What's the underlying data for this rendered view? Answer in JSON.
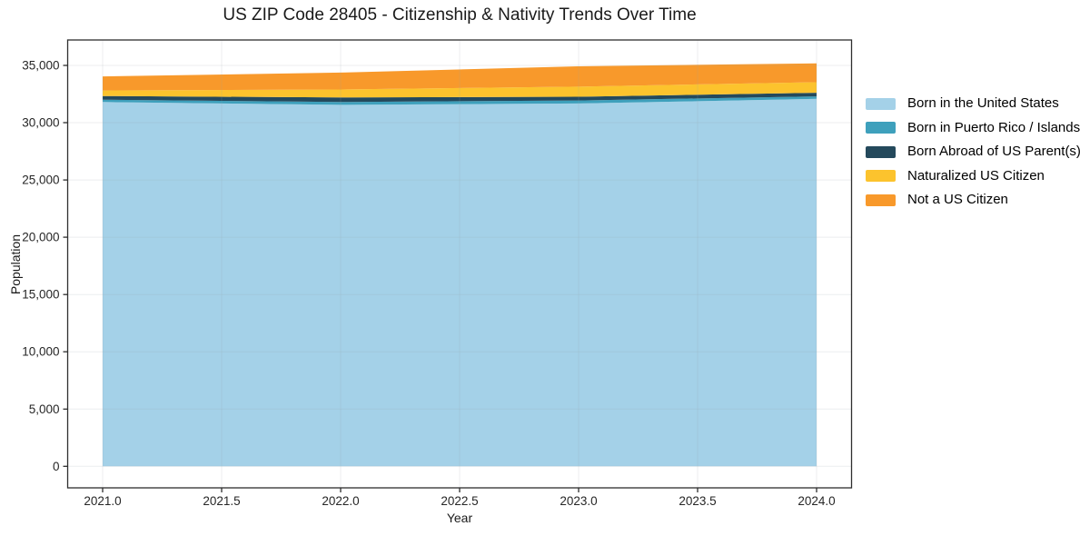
{
  "chart": {
    "title": "US ZIP Code 28405 - Citizenship & Nativity Trends Over Time",
    "xlabel": "Year",
    "ylabel": "Population"
  },
  "chart_data": {
    "type": "area",
    "stacked": true,
    "title": "US ZIP Code 28405 - Citizenship & Nativity Trends Over Time",
    "xlabel": "Year",
    "ylabel": "Population",
    "x": [
      2021,
      2022,
      2023,
      2024
    ],
    "series": [
      {
        "name": "Born in the United States",
        "color": "#a4d1e8",
        "values": [
          31800,
          31560,
          31680,
          32080
        ]
      },
      {
        "name": "Born in Puerto Rico / Islands",
        "color": "#3ea0bc",
        "values": [
          210,
          240,
          260,
          215
        ]
      },
      {
        "name": "Born Abroad of US Parent(s)",
        "color": "#24495c",
        "values": [
          320,
          400,
          320,
          320
        ]
      },
      {
        "name": "Naturalized US Citizen",
        "color": "#fcc32d",
        "values": [
          480,
          700,
          880,
          920
        ]
      },
      {
        "name": "Not a US Citizen",
        "color": "#f8992b",
        "values": [
          1230,
          1470,
          1780,
          1650
        ]
      }
    ],
    "totals": [
      34040,
      34370,
      34920,
      35185
    ],
    "xlim": [
      2020.853,
      2024.147
    ],
    "ylim": [
      -1880,
      37220
    ],
    "xticks": [
      2021.0,
      2021.5,
      2022.0,
      2022.5,
      2023.0,
      2023.5,
      2024.0
    ],
    "yticks": [
      0,
      5000,
      10000,
      15000,
      20000,
      25000,
      30000,
      35000
    ],
    "grid": true,
    "legend_position": "outside-right"
  },
  "colors": {
    "background": "#ffffff",
    "grid": "rgba(150,158,165,0.18)",
    "spine": "#2e2e2e",
    "tick_label": "#262626",
    "text": "#1a1a1a"
  }
}
